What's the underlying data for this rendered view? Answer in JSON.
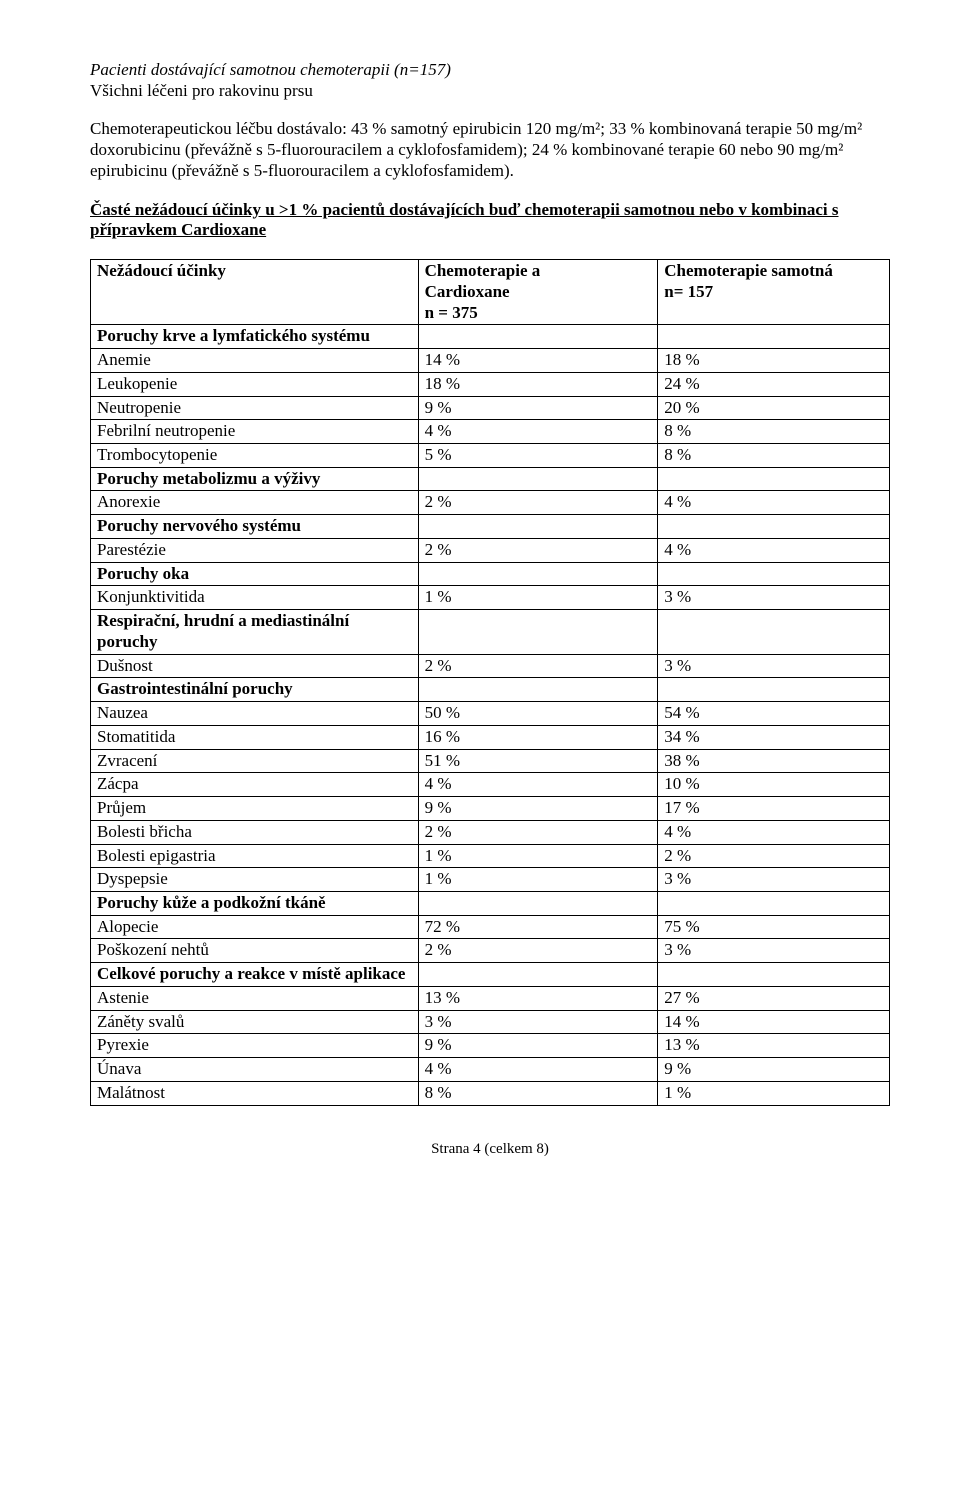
{
  "header": {
    "line1_italic": "Pacienti dostávající samotnou chemoterapii (n=157)",
    "line2": "Všichni léčeni pro rakovinu prsu",
    "para2": "Chemoterapeutickou léčbu dostávalo: 43 % samotný epirubicin 120 mg/m²; 33 % kombinovaná terapie 50 mg/m² doxorubicinu (převážně s 5-fluorouracilem a cyklofosfamidem); 24 % kombinované terapie 60 nebo 90 mg/m² epirubicinu (převážně s 5-fluorouracilem a cyklofosfamidem).",
    "section_title": "Časté nežádoucí účinky u >1 % pacientů dostávajících buď chemoterapii samotnou nebo v kombinaci s přípravkem Cardioxane"
  },
  "table": {
    "head": {
      "c0": "Nežádoucí účinky",
      "c1_l1": "Chemoterapie a",
      "c1_l2": "Cardioxane",
      "c1_l3": "n = 375",
      "c2_l1": "Chemoterapie samotná",
      "c2_l2": "n= 157"
    },
    "rows": [
      {
        "type": "group",
        "label": "Poruchy krve a lymfatického systému"
      },
      {
        "type": "data",
        "label": "Anemie",
        "c1": "14 %",
        "c2": "18 %"
      },
      {
        "type": "data",
        "label": "Leukopenie",
        "c1": "18 %",
        "c2": "24 %"
      },
      {
        "type": "data",
        "label": "Neutropenie",
        "c1": "9 %",
        "c2": "20 %"
      },
      {
        "type": "data",
        "label": "Febrilní neutropenie",
        "c1": "4 %",
        "c2": "8 %"
      },
      {
        "type": "data",
        "label": "Trombocytopenie",
        "c1": "5 %",
        "c2": "8 %"
      },
      {
        "type": "group",
        "label": "Poruchy metabolizmu a výživy"
      },
      {
        "type": "data",
        "label": "Anorexie",
        "c1": "2 %",
        "c2": "4 %"
      },
      {
        "type": "group",
        "label": "Poruchy nervového systému"
      },
      {
        "type": "data",
        "label": "Parestézie",
        "c1": "2 %",
        "c2": "4 %"
      },
      {
        "type": "group",
        "label": "Poruchy oka"
      },
      {
        "type": "data",
        "label": "Konjunktivitida",
        "c1": "1 %",
        "c2": "3 %"
      },
      {
        "type": "group",
        "label": "Respirační, hrudní a mediastinální poruchy"
      },
      {
        "type": "data",
        "label": "Dušnost",
        "c1": "2 %",
        "c2": "3 %"
      },
      {
        "type": "group",
        "label": "Gastrointestinální poruchy"
      },
      {
        "type": "data",
        "label": "Nauzea",
        "c1": "50 %",
        "c2": "54 %"
      },
      {
        "type": "data",
        "label": "Stomatitida",
        "c1": "16 %",
        "c2": "34 %"
      },
      {
        "type": "data",
        "label": "Zvracení",
        "c1": "51 %",
        "c2": "38 %"
      },
      {
        "type": "data",
        "label": "Zácpa",
        "c1": "4 %",
        "c2": "10 %"
      },
      {
        "type": "data",
        "label": "Průjem",
        "c1": "9 %",
        "c2": "17 %"
      },
      {
        "type": "data",
        "label": "Bolesti břicha",
        "c1": "2 %",
        "c2": "4 %"
      },
      {
        "type": "data",
        "label": "Bolesti epigastria",
        "c1": "1 %",
        "c2": "2 %"
      },
      {
        "type": "data",
        "label": "Dyspepsie",
        "c1": "1 %",
        "c2": "3 %"
      },
      {
        "type": "group",
        "label": "Poruchy kůže a podkožní tkáně"
      },
      {
        "type": "data",
        "label": "Alopecie",
        "c1": "72 %",
        "c2": "75 %"
      },
      {
        "type": "data",
        "label": "Poškození nehtů",
        "c1": "2 %",
        "c2": "3 %"
      },
      {
        "type": "group",
        "label": "Celkové poruchy a reakce v místě aplikace"
      },
      {
        "type": "data",
        "label": "Astenie",
        "c1": "13 %",
        "c2": "27 %"
      },
      {
        "type": "data",
        "label": "Záněty svalů",
        "c1": "3 %",
        "c2": "14 %"
      },
      {
        "type": "data",
        "label": "Pyrexie",
        "c1": "9 %",
        "c2": "13 %"
      },
      {
        "type": "data",
        "label": "Únava",
        "c1": "4 %",
        "c2": "9 %"
      },
      {
        "type": "data",
        "label": "Malátnost",
        "c1": "8 %",
        "c2": "1 %"
      }
    ]
  },
  "footer": "Strana 4 (celkem 8)"
}
